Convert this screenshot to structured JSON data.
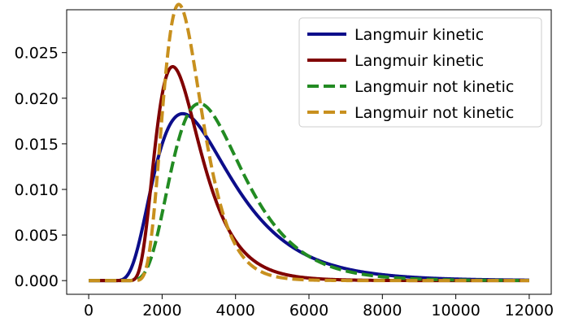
{
  "chart_data": {
    "type": "line",
    "title": "",
    "xlabel": "",
    "ylabel": "",
    "xlim": [
      -600,
      12600
    ],
    "ylim": [
      -0.0015,
      0.0297
    ],
    "xticks": [
      0,
      2000,
      4000,
      6000,
      8000,
      10000,
      12000
    ],
    "yticks": [
      0.0,
      0.005,
      0.01,
      0.015,
      0.02,
      0.025
    ],
    "xtick_labels": [
      "0",
      "2000",
      "4000",
      "6000",
      "8000",
      "10000",
      "12000"
    ],
    "ytick_labels": [
      "0.000",
      "0.005",
      "0.010",
      "0.015",
      "0.020",
      "0.025"
    ],
    "grid": false,
    "legend_position": "top-right",
    "x_range": [
      0,
      12000
    ],
    "series": [
      {
        "name": "Langmuir kinetic",
        "color": "#0c0d8a",
        "style": "solid",
        "shape": {
          "location": 500,
          "mean": 3000,
          "sd": 1600,
          "peak_x": 3400,
          "peak_y": 0.0145
        }
      },
      {
        "name": "Langmuir kinetic",
        "color": "#800000",
        "style": "solid",
        "shape": {
          "location": 900,
          "mean": 1850,
          "sd": 850,
          "peak_x": 2550,
          "peak_y": 0.0217
        }
      },
      {
        "name": "Langmuir not kinetic",
        "color": "#228b22",
        "style": "dashed",
        "shape": {
          "location": 700,
          "mean": 3000,
          "sd": 1300,
          "peak_x": 3500,
          "peak_y": 0.0175
        }
      },
      {
        "name": "Langmuir not kinetic",
        "color": "#c8901e",
        "style": "dashed",
        "shape": {
          "location": 900,
          "mean": 1850,
          "sd": 650,
          "peak_x": 2650,
          "peak_y": 0.0285
        }
      }
    ]
  }
}
